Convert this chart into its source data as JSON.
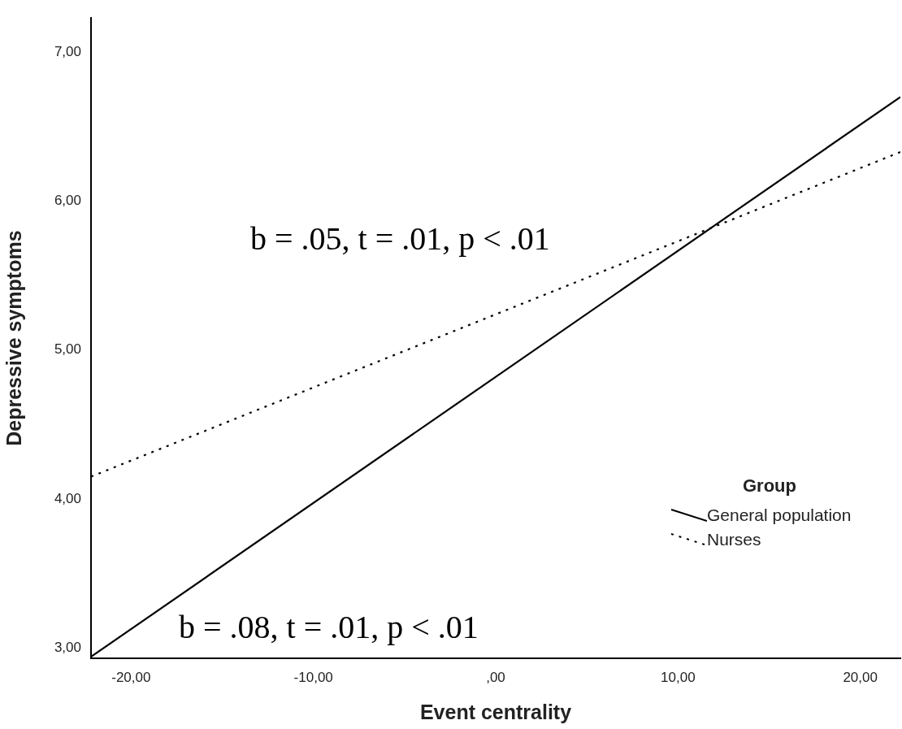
{
  "chart_data": {
    "type": "line",
    "xlabel": "Event centrality",
    "ylabel": "Depressive symptoms",
    "legend_title": "Group",
    "legend": "right",
    "x": [
      -22.2,
      22.2
    ],
    "series": [
      {
        "name": "General population",
        "color": "#000000",
        "values": [
          2.94,
          6.7
        ],
        "line_style": "solid"
      },
      {
        "name": "Nurses",
        "color": "#000000",
        "values": [
          4.15,
          6.33
        ],
        "line_style": "dotted"
      }
    ],
    "xlim": [
      -22.2,
      22.2
    ],
    "xticks": [
      {
        "value": -20,
        "label": "-20,00"
      },
      {
        "value": -10,
        "label": "-10,00"
      },
      {
        "value": 0,
        "label": ",00"
      },
      {
        "value": 10,
        "label": "10,00"
      },
      {
        "value": 20,
        "label": "20,00"
      }
    ],
    "ylim": [
      2.93,
      7.23
    ],
    "yticks": [
      {
        "value": 3,
        "label": "3,00"
      },
      {
        "value": 4,
        "label": "4,00"
      },
      {
        "value": 5,
        "label": "5,00"
      },
      {
        "value": 6,
        "label": "6,00"
      },
      {
        "value": 7,
        "label": "7,00"
      }
    ],
    "grid": false,
    "marker": "none",
    "annotations": [
      "b = .05, t = .01, p < .01",
      "b = .08, t = .01, p < .01"
    ]
  }
}
